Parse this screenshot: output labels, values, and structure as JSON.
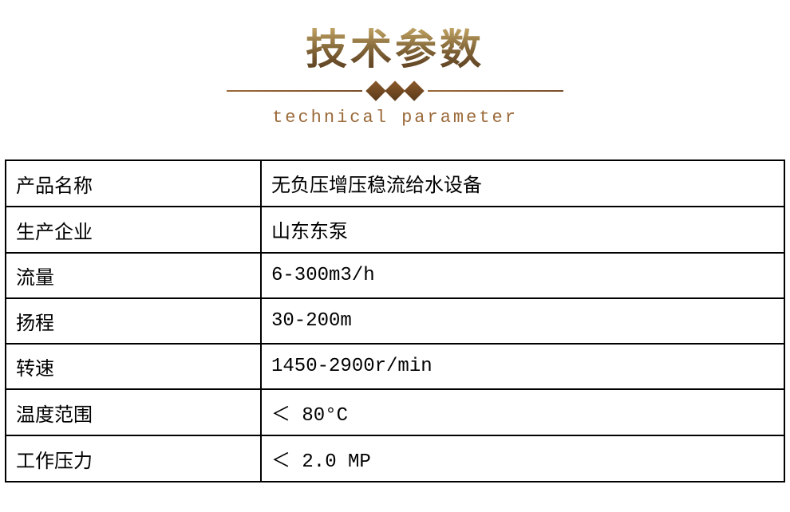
{
  "header": {
    "title": "技术参数",
    "subtitle": "technical parameter",
    "title_gradient": [
      "#d4c28a",
      "#b89a5e",
      "#8b6f3e",
      "#6b4e2a",
      "#5a3e1e"
    ],
    "divider_color": "#9b6a3a",
    "diamond_color": "#8b5a2b",
    "subtitle_color": "#9b6a3a"
  },
  "table": {
    "border_color": "#000000",
    "text_color": "#000000",
    "label_fontsize": 24,
    "value_fontsize": 24,
    "label_col_width": 320,
    "rows": [
      {
        "label": "产品名称",
        "value": "无负压增压稳流给水设备"
      },
      {
        "label": "生产企业",
        "value": "山东东泵"
      },
      {
        "label": "流量",
        "value": "6-300m3/h"
      },
      {
        "label": "扬程",
        "value": "30-200m"
      },
      {
        "label": "转速",
        "value": "1450-2900r/min"
      },
      {
        "label": "温度范围",
        "value": "＜ 80°C"
      },
      {
        "label": "工作压力",
        "value": "＜ 2.0 MP"
      }
    ]
  }
}
